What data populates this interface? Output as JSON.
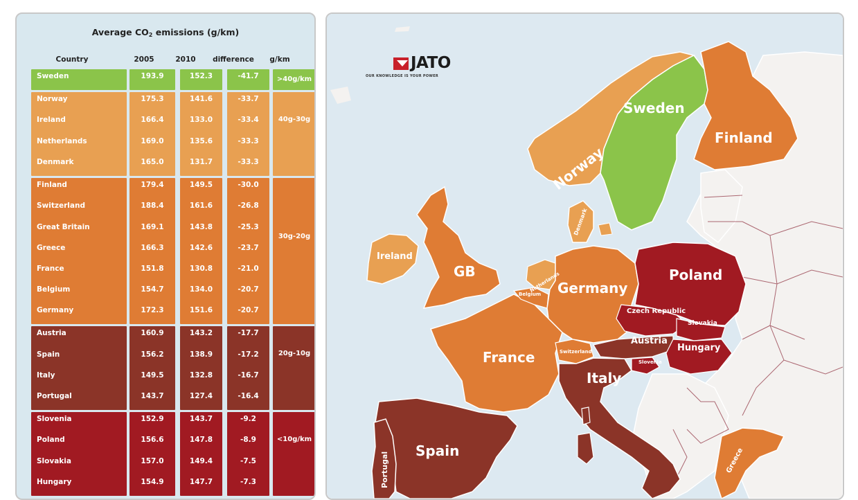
{
  "table": {
    "title_prefix": "Average CO",
    "title_sub": "2",
    "title_suffix": " emissions (g/km)",
    "headers": {
      "country": "Country",
      "y2005": "2005",
      "y2010": "2010",
      "difference": "difference",
      "band": "g/km"
    },
    "groups": [
      {
        "band": ">40g/km",
        "color": "#8bc44a",
        "rows": [
          {
            "country": "Sweden",
            "v2005": "193.9",
            "v2010": "152.3",
            "diff": "-41.7"
          }
        ]
      },
      {
        "band": "40g-30g",
        "color": "#e8a052",
        "rows": [
          {
            "country": "Norway",
            "v2005": "175.3",
            "v2010": "141.6",
            "diff": "-33.7"
          },
          {
            "country": "Ireland",
            "v2005": "166.4",
            "v2010": "133.0",
            "diff": "-33.4"
          },
          {
            "country": "Netherlands",
            "v2005": "169.0",
            "v2010": "135.6",
            "diff": "-33.3"
          },
          {
            "country": "Denmark",
            "v2005": "165.0",
            "v2010": "131.7",
            "diff": "-33.3"
          }
        ]
      },
      {
        "band": "30g-20g",
        "color": "#df7c34",
        "rows": [
          {
            "country": "Finland",
            "v2005": "179.4",
            "v2010": "149.5",
            "diff": "-30.0"
          },
          {
            "country": "Switzerland",
            "v2005": "188.4",
            "v2010": "161.6",
            "diff": "-26.8"
          },
          {
            "country": "Great Britain",
            "v2005": "169.1",
            "v2010": "143.8",
            "diff": "-25.3"
          },
          {
            "country": "Greece",
            "v2005": "166.3",
            "v2010": "142.6",
            "diff": "-23.7"
          },
          {
            "country": "France",
            "v2005": "151.8",
            "v2010": "130.8",
            "diff": "-21.0"
          },
          {
            "country": "Belgium",
            "v2005": "154.7",
            "v2010": "134.0",
            "diff": "-20.7"
          },
          {
            "country": "Germany",
            "v2005": "172.3",
            "v2010": "151.6",
            "diff": "-20.7"
          }
        ]
      },
      {
        "band": "20g-10g",
        "color": "#8b3428",
        "rows": [
          {
            "country": "Austria",
            "v2005": "160.9",
            "v2010": "143.2",
            "diff": "-17.7"
          },
          {
            "country": "Spain",
            "v2005": "156.2",
            "v2010": "138.9",
            "diff": "-17.2"
          },
          {
            "country": "Italy",
            "v2005": "149.5",
            "v2010": "132.8",
            "diff": "-16.7"
          },
          {
            "country": "Portugal",
            "v2005": "143.7",
            "v2010": "127.4",
            "diff": "-16.4"
          }
        ]
      },
      {
        "band": "<10g/km",
        "color": "#a11a22",
        "rows": [
          {
            "country": "Slovenia",
            "v2005": "152.9",
            "v2010": "143.7",
            "diff": "-9.2"
          },
          {
            "country": "Poland",
            "v2005": "156.6",
            "v2010": "147.8",
            "diff": "-8.9"
          },
          {
            "country": "Slovakia",
            "v2005": "157.0",
            "v2010": "149.4",
            "diff": "-7.5"
          },
          {
            "country": "Hungary",
            "v2005": "154.9",
            "v2010": "147.7",
            "diff": "-7.3"
          }
        ]
      }
    ]
  },
  "map": {
    "logo_text": "JATO",
    "logo_tagline": "OUR KNOWLEDGE IS YOUR POWER",
    "colors": {
      "sea": "#dde9f1",
      "land": "#f4f2f0",
      "border": "#8c2b3a",
      "band_40plus": "#8bc44a",
      "band_40_30": "#e8a052",
      "band_30_20": "#df7c34",
      "band_20_10": "#8b3428",
      "band_10": "#a11a22"
    },
    "labels": {
      "sweden": "Sweden",
      "finland": "Finland",
      "norway": "Norway",
      "denmark": "Denmark",
      "ireland": "Ireland",
      "gb": "GB",
      "netherlands": "Netherlands",
      "belgium": "Belgium",
      "germany": "Germany",
      "poland": "Poland",
      "czech": "Czech Republic",
      "slovakia": "Slovakia",
      "austria": "Austria",
      "hungary": "Hungary",
      "switzerland": "Switzerland",
      "slovenia": "Slovenia",
      "france": "France",
      "italy": "Italy",
      "spain": "Spain",
      "portugal": "Portugal",
      "greece": "Greece"
    }
  }
}
